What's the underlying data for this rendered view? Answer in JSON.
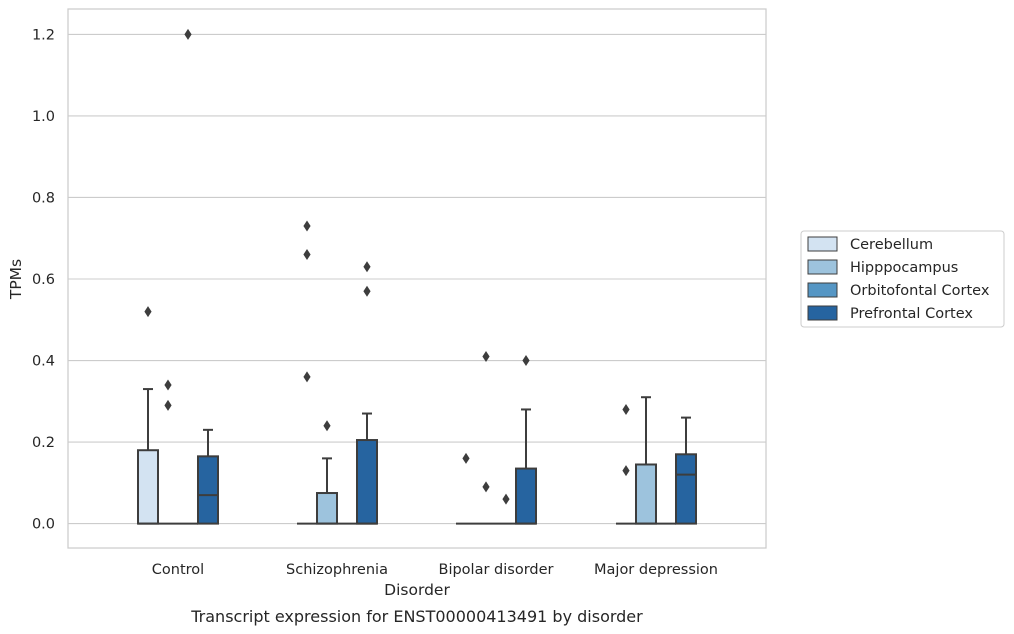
{
  "chart_data": {
    "type": "box",
    "title": "",
    "xlabel": "Disorder",
    "ylabel": "TPMs",
    "caption": "Transcript expression for ENST00000413491 by disorder",
    "ylim": [
      -0.06,
      1.26
    ],
    "yticks": [
      "0.0",
      "0.2",
      "0.4",
      "0.6",
      "0.8",
      "1.0",
      "1.2"
    ],
    "grid": true,
    "legend_position": "right",
    "categories": [
      "Control",
      "Schizophrenia",
      "Bipolar disorder",
      "Major depression"
    ],
    "series": [
      {
        "name": "Cerebellum",
        "color": "#d3e3f2",
        "boxes": [
          {
            "q1": 0,
            "median": 0,
            "q3": 0.18,
            "whisker_low": 0,
            "whisker_high": 0.33,
            "outliers": [
              0.52
            ]
          },
          {
            "q1": 0,
            "median": 0,
            "q3": 0,
            "whisker_low": 0,
            "whisker_high": 0,
            "outliers": [
              0.36,
              0.66,
              0.73
            ]
          },
          {
            "q1": 0,
            "median": 0,
            "q3": 0,
            "whisker_low": 0,
            "whisker_high": 0,
            "outliers": [
              0.16
            ]
          },
          {
            "q1": 0,
            "median": 0,
            "q3": 0,
            "whisker_low": 0,
            "whisker_high": 0,
            "outliers": [
              0.13,
              0.28
            ]
          }
        ]
      },
      {
        "name": "Hipppocampus",
        "color": "#9dc3dd",
        "boxes": [
          {
            "q1": 0,
            "median": 0,
            "q3": 0,
            "whisker_low": 0,
            "whisker_high": 0,
            "outliers": [
              0.29,
              0.34
            ]
          },
          {
            "q1": 0,
            "median": 0,
            "q3": 0.075,
            "whisker_low": 0,
            "whisker_high": 0.16,
            "outliers": [
              0.24
            ]
          },
          {
            "q1": 0,
            "median": 0,
            "q3": 0,
            "whisker_low": 0,
            "whisker_high": 0,
            "outliers": [
              0.09,
              0.41
            ]
          },
          {
            "q1": 0,
            "median": 0,
            "q3": 0.145,
            "whisker_low": 0,
            "whisker_high": 0.31,
            "outliers": []
          }
        ]
      },
      {
        "name": "Orbitofontal Cortex",
        "color": "#5596c4",
        "boxes": [
          {
            "q1": 0,
            "median": 0,
            "q3": 0,
            "whisker_low": 0,
            "whisker_high": 0,
            "outliers": [
              1.2
            ]
          },
          {
            "q1": 0,
            "median": 0,
            "q3": 0,
            "whisker_low": 0,
            "whisker_high": 0,
            "outliers": []
          },
          {
            "q1": 0,
            "median": 0,
            "q3": 0,
            "whisker_low": 0,
            "whisker_high": 0,
            "outliers": [
              0.06
            ]
          },
          {
            "q1": 0,
            "median": 0,
            "q3": 0,
            "whisker_low": 0,
            "whisker_high": 0,
            "outliers": []
          }
        ]
      },
      {
        "name": "Prefrontal Cortex",
        "color": "#2664a0",
        "boxes": [
          {
            "q1": 0,
            "median": 0.07,
            "q3": 0.165,
            "whisker_low": 0,
            "whisker_high": 0.23,
            "outliers": []
          },
          {
            "q1": 0,
            "median": 0,
            "q3": 0.205,
            "whisker_low": 0,
            "whisker_high": 0.27,
            "outliers": [
              0.57,
              0.63
            ]
          },
          {
            "q1": 0,
            "median": 0,
            "q3": 0.135,
            "whisker_low": 0,
            "whisker_high": 0.28,
            "outliers": [
              0.4
            ]
          },
          {
            "q1": 0,
            "median": 0.12,
            "q3": 0.17,
            "whisker_low": 0,
            "whisker_high": 0.26,
            "outliers": []
          }
        ]
      }
    ]
  }
}
